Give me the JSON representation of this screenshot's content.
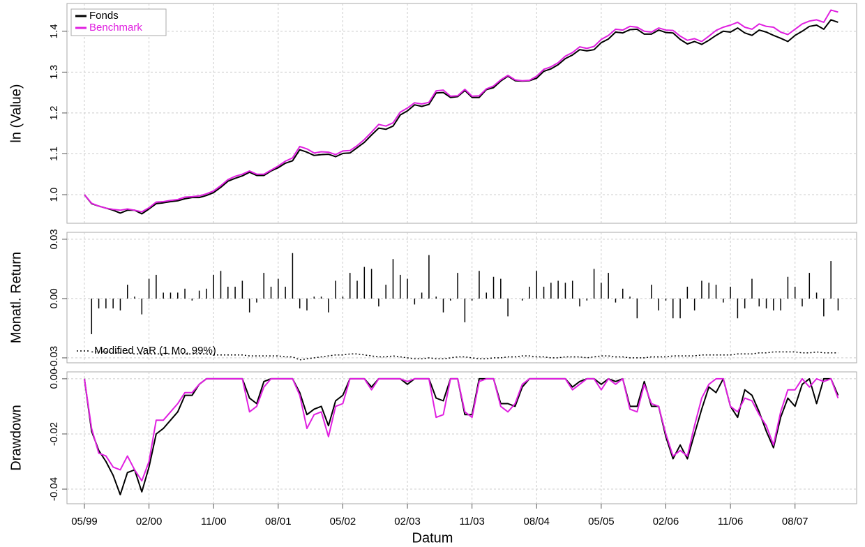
{
  "chart_data": [
    {
      "type": "line",
      "ylabel": "ln (Value)",
      "legend": "top-left",
      "grid": true,
      "x": [
        "05/99",
        "06/99",
        "07/99",
        "08/99",
        "09/99",
        "10/99",
        "11/99",
        "12/99",
        "01/00",
        "02/00",
        "03/00",
        "04/00",
        "05/00",
        "06/00",
        "07/00",
        "08/00",
        "09/00",
        "10/00",
        "11/00",
        "12/00",
        "01/01",
        "02/01",
        "03/01",
        "04/01",
        "05/01",
        "06/01",
        "07/01",
        "08/01",
        "09/01",
        "10/01",
        "11/01",
        "12/01",
        "01/02",
        "02/02",
        "03/02",
        "04/02",
        "05/02",
        "06/02",
        "07/02",
        "08/02",
        "09/02",
        "10/02",
        "11/02",
        "12/02",
        "01/03",
        "02/03",
        "03/03",
        "04/03",
        "05/03",
        "06/03",
        "07/03",
        "08/03",
        "09/03",
        "10/03",
        "11/03",
        "12/03",
        "01/04",
        "02/04",
        "03/04",
        "04/04",
        "05/04",
        "06/04",
        "07/04",
        "08/04",
        "09/04",
        "10/04",
        "11/04",
        "12/04",
        "01/05",
        "02/05",
        "03/05",
        "04/05",
        "05/05",
        "06/05",
        "07/05",
        "08/05",
        "09/05",
        "10/05",
        "11/05",
        "12/05",
        "01/06",
        "02/06",
        "03/06",
        "04/06",
        "05/06",
        "06/06",
        "07/06",
        "08/06",
        "09/06",
        "10/06",
        "11/06",
        "12/06",
        "01/07",
        "02/07",
        "03/07",
        "04/07",
        "05/07",
        "06/07",
        "07/07",
        "08/07",
        "09/07",
        "10/07",
        "11/07",
        "12/07",
        "01/08",
        "02/08"
      ],
      "ylim": [
        0.93,
        1.468
      ],
      "yticks": [
        {
          "value": 1,
          "label": "1.0"
        },
        1.1,
        1.2,
        1.3,
        1.4
      ],
      "series": [
        {
          "name": "Fonds",
          "color": "#000000",
          "values": [
            1.0,
            0.978,
            0.972,
            0.967,
            0.962,
            0.955,
            0.962,
            0.962,
            0.953,
            0.965,
            0.978,
            0.98,
            0.983,
            0.985,
            0.99,
            0.993,
            0.993,
            0.998,
            1.005,
            1.018,
            1.033,
            1.04,
            1.046,
            1.055,
            1.047,
            1.047,
            1.058,
            1.066,
            1.077,
            1.083,
            1.11,
            1.104,
            1.096,
            1.098,
            1.099,
            1.093,
            1.101,
            1.102,
            1.115,
            1.128,
            1.146,
            1.163,
            1.16,
            1.168,
            1.195,
            1.205,
            1.22,
            1.216,
            1.221,
            1.249,
            1.25,
            1.238,
            1.24,
            1.255,
            1.238,
            1.238,
            1.257,
            1.262,
            1.278,
            1.29,
            1.279,
            1.278,
            1.279,
            1.285,
            1.302,
            1.308,
            1.318,
            1.333,
            1.342,
            1.355,
            1.352,
            1.355,
            1.372,
            1.381,
            1.398,
            1.396,
            1.404,
            1.405,
            1.393,
            1.393,
            1.403,
            1.397,
            1.396,
            1.38,
            1.369,
            1.375,
            1.368,
            1.378,
            1.39,
            1.4,
            1.398,
            1.408,
            1.396,
            1.39,
            1.403,
            1.398,
            1.39,
            1.383,
            1.375,
            1.39,
            1.4,
            1.412,
            1.415,
            1.405,
            1.428,
            1.422
          ]
        },
        {
          "name": "Benchmark",
          "color": "#e020e0",
          "values": [
            1.0,
            0.979,
            0.972,
            0.967,
            0.964,
            0.962,
            0.965,
            0.962,
            0.958,
            0.968,
            0.982,
            0.983,
            0.986,
            0.988,
            0.994,
            0.995,
            0.997,
            1.002,
            1.009,
            1.022,
            1.037,
            1.045,
            1.05,
            1.058,
            1.05,
            1.05,
            1.06,
            1.07,
            1.082,
            1.09,
            1.118,
            1.112,
            1.102,
            1.105,
            1.104,
            1.098,
            1.107,
            1.108,
            1.12,
            1.135,
            1.153,
            1.172,
            1.168,
            1.176,
            1.202,
            1.212,
            1.225,
            1.222,
            1.226,
            1.254,
            1.256,
            1.241,
            1.242,
            1.258,
            1.241,
            1.242,
            1.259,
            1.266,
            1.281,
            1.292,
            1.281,
            1.279,
            1.28,
            1.29,
            1.307,
            1.313,
            1.323,
            1.339,
            1.348,
            1.362,
            1.358,
            1.363,
            1.38,
            1.39,
            1.405,
            1.403,
            1.412,
            1.41,
            1.4,
            1.398,
            1.408,
            1.403,
            1.402,
            1.388,
            1.378,
            1.382,
            1.375,
            1.388,
            1.402,
            1.41,
            1.415,
            1.422,
            1.41,
            1.405,
            1.418,
            1.412,
            1.41,
            1.398,
            1.392,
            1.405,
            1.418,
            1.425,
            1.428,
            1.422,
            1.452,
            1.447
          ]
        }
      ]
    },
    {
      "type": "bar",
      "ylabel": "Monatl. Return",
      "grid": true,
      "color": "#000000",
      "x": [
        "05/99",
        "06/99",
        "07/99",
        "08/99",
        "09/99",
        "10/99",
        "11/99",
        "12/99",
        "01/00",
        "02/00",
        "03/00",
        "04/00",
        "05/00",
        "06/00",
        "07/00",
        "08/00",
        "09/00",
        "10/00",
        "11/00",
        "12/00",
        "01/01",
        "02/01",
        "03/01",
        "04/01",
        "05/01",
        "06/01",
        "07/01",
        "08/01",
        "09/01",
        "10/01",
        "11/01",
        "12/01",
        "01/02",
        "02/02",
        "03/02",
        "04/02",
        "05/02",
        "06/02",
        "07/02",
        "08/02",
        "09/02",
        "10/02",
        "11/02",
        "12/02",
        "01/03",
        "02/03",
        "03/03",
        "04/03",
        "05/03",
        "06/03",
        "07/03",
        "08/03",
        "09/03",
        "10/03",
        "11/03",
        "12/03",
        "01/04",
        "02/04",
        "03/04",
        "04/04",
        "05/04",
        "06/04",
        "07/04",
        "08/04",
        "09/04",
        "10/04",
        "11/04",
        "12/04",
        "01/05",
        "02/05",
        "03/05",
        "04/05",
        "05/05",
        "06/05",
        "07/05",
        "08/05",
        "09/05",
        "10/05",
        "11/05",
        "12/05",
        "01/06",
        "02/06",
        "03/06",
        "04/06",
        "05/06",
        "06/06",
        "07/06",
        "08/06",
        "09/06",
        "10/06",
        "11/06",
        "12/06",
        "01/07",
        "02/07",
        "03/07",
        "04/07",
        "05/07",
        "06/07",
        "07/07",
        "08/07",
        "09/07",
        "10/07",
        "11/07",
        "12/07",
        "01/08",
        "02/08"
      ],
      "ylim": [
        -0.0325,
        0.0335
      ],
      "yticks": [
        -0.03,
        {
          "value": 0,
          "label": "0.00"
        },
        0.03
      ],
      "values": [
        null,
        -0.018,
        -0.005,
        -0.005,
        -0.005,
        -0.006,
        0.007,
        0.001,
        -0.008,
        0.01,
        0.012,
        0.003,
        0.003,
        0.003,
        0.005,
        -0.001,
        0.004,
        0.005,
        0.012,
        0.014,
        0.006,
        0.006,
        0.009,
        -0.007,
        -0.002,
        0.013,
        0.006,
        0.01,
        0.006,
        0.023,
        -0.005,
        -0.006,
        0.001,
        0.001,
        -0.007,
        0.009,
        0.001,
        0.013,
        0.009,
        0.016,
        0.015,
        -0.004,
        0.007,
        0.02,
        0.012,
        0.01,
        -0.003,
        0.003,
        0.022,
        0.001,
        -0.007,
        -0.001,
        0.013,
        -0.012,
        -0.001,
        0.014,
        0.003,
        0.011,
        0.01,
        -0.009,
        0,
        -0.001,
        0.006,
        0.014,
        0.006,
        0.008,
        0.009,
        0.008,
        0.009,
        -0.004,
        -0.001,
        0.015,
        0.008,
        0.013,
        -0.002,
        0.005,
        0.001,
        -0.01,
        0,
        0.007,
        -0.006,
        -0.001,
        -0.01,
        -0.01,
        0.006,
        -0.006,
        0.009,
        0.008,
        0.007,
        -0.002,
        0.006,
        -0.01,
        -0.005,
        0.01,
        -0.004,
        -0.005,
        -0.006,
        -0.006,
        0.011,
        0.006,
        -0.004,
        0.013,
        0.003,
        -0.009,
        0.019,
        -0.006
      ],
      "overlay": {
        "type": "line",
        "name": "Modified VaR (1 Mo, 99%)",
        "color": "#000000",
        "dash": "dotted",
        "values": [
          null,
          -0.027,
          -0.027,
          -0.027,
          -0.0275,
          -0.0275,
          -0.0275,
          -0.028,
          -0.028,
          -0.028,
          -0.028,
          -0.028,
          -0.028,
          -0.028,
          -0.028,
          -0.028,
          -0.028,
          -0.028,
          -0.0285,
          -0.0285,
          -0.0285,
          -0.0285,
          -0.0285,
          -0.029,
          -0.029,
          -0.029,
          -0.029,
          -0.029,
          -0.0295,
          -0.0295,
          -0.031,
          -0.0305,
          -0.03,
          -0.0295,
          -0.029,
          -0.0285,
          -0.0285,
          -0.028,
          -0.028,
          -0.0285,
          -0.029,
          -0.0295,
          -0.0295,
          -0.029,
          -0.0295,
          -0.03,
          -0.0305,
          -0.0305,
          -0.03,
          -0.0305,
          -0.0305,
          -0.03,
          -0.0295,
          -0.0295,
          -0.03,
          -0.0305,
          -0.0305,
          -0.03,
          -0.03,
          -0.0295,
          -0.0295,
          -0.029,
          -0.029,
          -0.0295,
          -0.0295,
          -0.03,
          -0.03,
          -0.0295,
          -0.0295,
          -0.0295,
          -0.03,
          -0.0295,
          -0.029,
          -0.029,
          -0.0295,
          -0.0295,
          -0.03,
          -0.03,
          -0.03,
          -0.0295,
          -0.0295,
          -0.0295,
          -0.029,
          -0.029,
          -0.029,
          -0.029,
          -0.0285,
          -0.0285,
          -0.0285,
          -0.0285,
          -0.0285,
          -0.028,
          -0.028,
          -0.028,
          -0.0275,
          -0.0275,
          -0.027,
          -0.027,
          -0.027,
          -0.027,
          -0.0275,
          -0.0275,
          -0.027,
          -0.0275,
          -0.0275,
          -0.0275
        ]
      }
    },
    {
      "type": "line",
      "ylabel": "Drawdown",
      "xlabel": "Datum",
      "grid": true,
      "x": [
        "05/99",
        "06/99",
        "07/99",
        "08/99",
        "09/99",
        "10/99",
        "11/99",
        "12/99",
        "01/00",
        "02/00",
        "03/00",
        "04/00",
        "05/00",
        "06/00",
        "07/00",
        "08/00",
        "09/00",
        "10/00",
        "11/00",
        "12/00",
        "01/01",
        "02/01",
        "03/01",
        "04/01",
        "05/01",
        "06/01",
        "07/01",
        "08/01",
        "09/01",
        "10/01",
        "11/01",
        "12/01",
        "01/02",
        "02/02",
        "03/02",
        "04/02",
        "05/02",
        "06/02",
        "07/02",
        "08/02",
        "09/02",
        "10/02",
        "11/02",
        "12/02",
        "01/03",
        "02/03",
        "03/03",
        "04/03",
        "05/03",
        "06/03",
        "07/03",
        "08/03",
        "09/03",
        "10/03",
        "11/03",
        "12/03",
        "01/04",
        "02/04",
        "03/04",
        "04/04",
        "05/04",
        "06/04",
        "07/04",
        "08/04",
        "09/04",
        "10/04",
        "11/04",
        "12/04",
        "01/05",
        "02/05",
        "03/05",
        "04/05",
        "05/05",
        "06/05",
        "07/05",
        "08/05",
        "09/05",
        "10/05",
        "11/05",
        "12/05",
        "01/06",
        "02/06",
        "03/06",
        "04/06",
        "05/06",
        "06/06",
        "07/06",
        "08/06",
        "09/06",
        "10/06",
        "11/06",
        "12/06",
        "01/07",
        "02/07",
        "03/07",
        "04/07",
        "05/07",
        "06/07",
        "07/07",
        "08/07",
        "09/07",
        "10/07",
        "11/07",
        "12/07",
        "01/08",
        "02/08"
      ],
      "xticks": [
        "05/99",
        "02/00",
        "11/00",
        "08/01",
        "05/02",
        "02/03",
        "11/03",
        "08/04",
        "05/05",
        "02/06",
        "11/06",
        "08/07"
      ],
      "ylim": [
        -0.0453,
        0.0025
      ],
      "yticks": [
        -0.04,
        -0.02,
        {
          "value": 0,
          "label": "0.00"
        }
      ],
      "series": [
        {
          "name": "Fonds",
          "color": "#000000",
          "values": [
            0,
            -0.019,
            -0.026,
            -0.03,
            -0.035,
            -0.042,
            -0.034,
            -0.033,
            -0.041,
            -0.032,
            -0.02,
            -0.018,
            -0.015,
            -0.012,
            -0.006,
            -0.006,
            -0.002,
            0,
            0,
            0,
            0,
            0,
            0,
            -0.007,
            -0.009,
            -0.001,
            0,
            0,
            0,
            0,
            -0.005,
            -0.013,
            -0.011,
            -0.01,
            -0.017,
            -0.008,
            -0.006,
            0,
            0,
            0,
            -0.003,
            0,
            0,
            0,
            0,
            -0.002,
            0,
            0,
            0,
            -0.007,
            -0.008,
            0,
            0,
            -0.013,
            -0.013,
            0,
            0,
            0,
            -0.009,
            -0.009,
            -0.01,
            -0.003,
            0,
            0,
            0,
            0,
            0,
            0,
            -0.003,
            -0.001,
            0,
            0,
            -0.002,
            0,
            -0.001,
            0,
            -0.01,
            -0.01,
            -0.001,
            -0.01,
            -0.01,
            -0.021,
            -0.029,
            -0.024,
            -0.029,
            -0.02,
            -0.011,
            -0.003,
            -0.005,
            0,
            -0.01,
            -0.014,
            -0.004,
            -0.006,
            -0.012,
            -0.019,
            -0.025,
            -0.014,
            -0.007,
            -0.01,
            -0.002,
            0,
            -0.009,
            0,
            0,
            -0.006
          ]
        },
        {
          "name": "Benchmark",
          "color": "#e020e0",
          "values": [
            0,
            -0.018,
            -0.027,
            -0.028,
            -0.032,
            -0.033,
            -0.028,
            -0.033,
            -0.037,
            -0.03,
            -0.015,
            -0.015,
            -0.012,
            -0.009,
            -0.005,
            -0.005,
            -0.002,
            0,
            0,
            0,
            0,
            0,
            0,
            -0.012,
            -0.01,
            -0.003,
            0,
            0,
            0,
            0,
            -0.006,
            -0.018,
            -0.013,
            -0.012,
            -0.021,
            -0.01,
            -0.009,
            0,
            0,
            0,
            -0.004,
            0,
            0,
            0,
            0,
            -0.001,
            0,
            0,
            0,
            -0.014,
            -0.013,
            0,
            0,
            -0.012,
            -0.014,
            -0.001,
            0,
            0,
            -0.01,
            -0.012,
            -0.009,
            -0.002,
            0,
            0,
            0,
            0,
            0,
            0,
            -0.004,
            -0.002,
            0,
            0,
            -0.004,
            0,
            -0.002,
            0,
            -0.011,
            -0.012,
            -0.002,
            -0.009,
            -0.01,
            -0.02,
            -0.028,
            -0.026,
            -0.028,
            -0.017,
            -0.007,
            -0.002,
            0,
            0,
            -0.01,
            -0.012,
            -0.007,
            -0.008,
            -0.013,
            -0.017,
            -0.024,
            -0.012,
            -0.004,
            -0.004,
            0,
            -0.003,
            0,
            -0.001,
            0,
            -0.007
          ]
        }
      ]
    }
  ]
}
